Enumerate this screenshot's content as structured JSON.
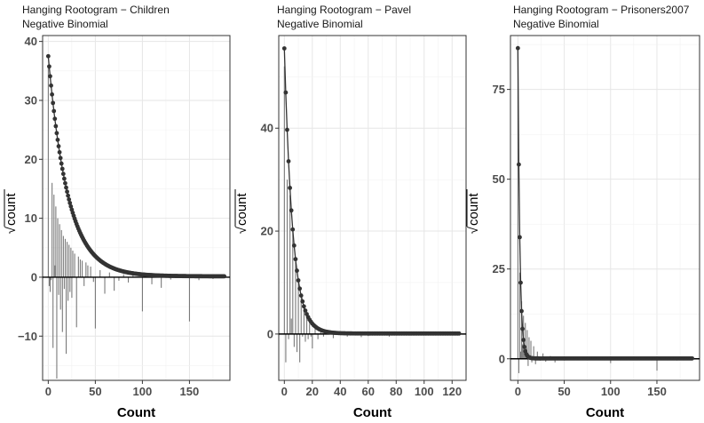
{
  "chart_data": [
    {
      "type": "rootogram",
      "title": "Hanging Rootogram − Children",
      "subtitle": "Negative Binomial",
      "xlabel": "Count",
      "ylabel": "count",
      "xlim": [
        -6,
        193
      ],
      "ylim": [
        -17.5,
        41
      ],
      "xticks": [
        0,
        50,
        100,
        150
      ],
      "yticks": [
        -10,
        0,
        10,
        20,
        30,
        40
      ],
      "xmax": 187,
      "fitted": {
        "peak": 37.5,
        "decay": 0.0478,
        "floor": 0.15
      },
      "bars": [
        [
          0,
          0,
          35.5
        ],
        [
          1,
          0,
          -1.5
        ],
        [
          2,
          0,
          -2.5
        ],
        [
          3,
          0,
          -0.5
        ],
        [
          4,
          0,
          16
        ],
        [
          5,
          0,
          -12
        ],
        [
          6,
          0,
          14
        ],
        [
          7,
          0,
          2
        ],
        [
          8,
          0,
          12
        ],
        [
          9,
          0,
          -17.2
        ],
        [
          10,
          0,
          10
        ],
        [
          11,
          0,
          -3
        ],
        [
          12,
          0,
          9
        ],
        [
          13,
          0,
          -5.5
        ],
        [
          14,
          0,
          8
        ],
        [
          15,
          0,
          -9.3
        ],
        [
          16,
          0,
          7
        ],
        [
          17,
          0,
          -2
        ],
        [
          18,
          0,
          6.5
        ],
        [
          19,
          0,
          -13
        ],
        [
          20,
          0,
          6
        ],
        [
          21,
          0,
          -4
        ],
        [
          22,
          0,
          5.5
        ],
        [
          23,
          0,
          -2.5
        ],
        [
          24,
          0,
          5
        ],
        [
          25,
          0,
          -3.5
        ],
        [
          26,
          0,
          4.5
        ],
        [
          28,
          0,
          4
        ],
        [
          30,
          0,
          -8.5
        ],
        [
          32,
          0,
          3.5
        ],
        [
          34,
          0,
          3
        ],
        [
          36,
          0,
          2.8
        ],
        [
          38,
          0,
          -1.5
        ],
        [
          40,
          0,
          2.5
        ],
        [
          42,
          0,
          2
        ],
        [
          45,
          0,
          1.8
        ],
        [
          48,
          0,
          -0.8
        ],
        [
          50,
          0,
          -8.7
        ],
        [
          55,
          0,
          1.2
        ],
        [
          60,
          0,
          -2.8
        ],
        [
          65,
          0,
          0.8
        ],
        [
          70,
          0,
          -2.3
        ],
        [
          75,
          0,
          -0.6
        ],
        [
          80,
          0,
          0.5
        ],
        [
          85,
          0,
          -0.9
        ],
        [
          90,
          0,
          0.4
        ],
        [
          100,
          0,
          -5.8
        ],
        [
          110,
          0,
          -1.2
        ],
        [
          120,
          0,
          -1.8
        ],
        [
          130,
          0,
          -0.4
        ],
        [
          150,
          0,
          -7.5
        ],
        [
          160,
          0,
          -0.5
        ],
        [
          175,
          0,
          -0.3
        ]
      ]
    },
    {
      "type": "rootogram",
      "title": "Hanging Rootogram − Pavel",
      "subtitle": "Negative Binomial",
      "xlabel": "Count",
      "ylabel": "count",
      "xlim": [
        -4,
        130
      ],
      "ylim": [
        -9,
        58
      ],
      "xticks": [
        0,
        20,
        40,
        60,
        80,
        100,
        120
      ],
      "yticks": [
        0,
        20,
        40
      ],
      "xmax": 125,
      "fitted": {
        "peak": 55.5,
        "decay": 0.168,
        "floor": 0.1
      },
      "bars": [
        [
          0,
          0,
          52
        ],
        [
          1,
          0,
          -5.5
        ],
        [
          2,
          0,
          30
        ],
        [
          3,
          0,
          -1
        ],
        [
          4,
          0,
          27
        ],
        [
          5,
          0,
          3
        ],
        [
          6,
          0,
          20
        ],
        [
          7,
          0,
          -2.5
        ],
        [
          8,
          0,
          14
        ],
        [
          9,
          0,
          -3.5
        ],
        [
          10,
          0,
          10
        ],
        [
          11,
          0,
          -5.5
        ],
        [
          12,
          0,
          7
        ],
        [
          13,
          0,
          -0.5
        ],
        [
          14,
          0,
          5
        ],
        [
          15,
          0,
          -1.5
        ],
        [
          16,
          0,
          3.5
        ],
        [
          17,
          0,
          -1
        ],
        [
          18,
          0,
          2
        ],
        [
          19,
          0,
          -0.5
        ],
        [
          20,
          0,
          -2.8
        ],
        [
          22,
          0,
          1.5
        ],
        [
          24,
          0,
          -1
        ],
        [
          26,
          0,
          0.8
        ],
        [
          28,
          0,
          -0.5
        ],
        [
          30,
          0,
          0.5
        ],
        [
          35,
          0,
          -0.8
        ],
        [
          40,
          0,
          0.3
        ],
        [
          45,
          0,
          -0.5
        ],
        [
          55,
          0,
          -0.6
        ],
        [
          60,
          0,
          -0.4
        ],
        [
          75,
          0,
          -0.5
        ],
        [
          90,
          0,
          -0.3
        ],
        [
          120,
          0,
          -0.2
        ]
      ]
    },
    {
      "type": "rootogram",
      "title": "Hanging Rootogram − Prisoners2007",
      "subtitle": "Negative Binomial",
      "xlabel": "Count",
      "ylabel": "count",
      "xlim": [
        -8,
        196
      ],
      "ylim": [
        -6,
        90
      ],
      "xticks": [
        0,
        50,
        100,
        150
      ],
      "yticks": [
        0,
        25,
        50,
        75
      ],
      "xmax": 188,
      "fitted": {
        "peak": 86.5,
        "decay": 0.47,
        "floor": 0.1
      },
      "bars": [
        [
          0,
          0,
          86
        ],
        [
          1,
          0,
          -4
        ],
        [
          2,
          0,
          24
        ],
        [
          3,
          0,
          2
        ],
        [
          4,
          0,
          16
        ],
        [
          5,
          0,
          4
        ],
        [
          6,
          0,
          12
        ],
        [
          7,
          0,
          2
        ],
        [
          8,
          0,
          10
        ],
        [
          9,
          0,
          3
        ],
        [
          10,
          0,
          8
        ],
        [
          11,
          0,
          -2
        ],
        [
          12,
          0,
          6
        ],
        [
          13,
          0,
          1
        ],
        [
          14,
          0,
          5
        ],
        [
          15,
          0,
          -1
        ],
        [
          17,
          0,
          3.5
        ],
        [
          19,
          0,
          -1.5
        ],
        [
          21,
          0,
          2
        ],
        [
          24,
          0,
          -0.5
        ],
        [
          27,
          0,
          1.5
        ],
        [
          30,
          0,
          -0.8
        ],
        [
          35,
          0,
          0.8
        ],
        [
          40,
          0,
          -1
        ],
        [
          45,
          0,
          0.4
        ],
        [
          50,
          0,
          -0.4
        ],
        [
          60,
          0,
          0.3
        ],
        [
          70,
          0,
          -0.4
        ],
        [
          100,
          0,
          -1.2
        ],
        [
          120,
          0,
          -0.3
        ],
        [
          150,
          0,
          -3.3
        ],
        [
          170,
          0,
          -0.3
        ]
      ]
    }
  ]
}
